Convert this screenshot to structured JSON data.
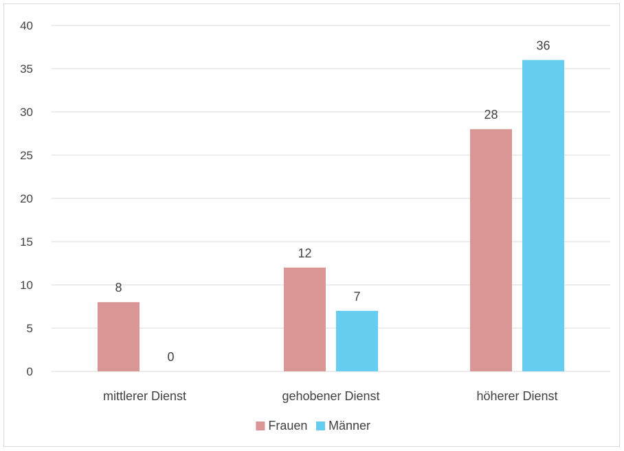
{
  "chart_data": {
    "type": "bar",
    "title": "",
    "xlabel": "",
    "ylabel": "",
    "categories": [
      "mittlerer Dienst",
      "gehobener Dienst",
      "höherer Dienst"
    ],
    "series": [
      {
        "name": "Frauen",
        "values": [
          8,
          12,
          28
        ],
        "color": "#d99694"
      },
      {
        "name": "Männer",
        "values": [
          0,
          7,
          36
        ],
        "color": "#66ccf0"
      }
    ],
    "ylim": [
      0,
      40
    ],
    "yticks": [
      0,
      5,
      10,
      15,
      20,
      25,
      30,
      35,
      40
    ],
    "grid": true,
    "legend_position": "bottom",
    "axis_color": "#d9d9d9",
    "text_color": "#404040"
  }
}
